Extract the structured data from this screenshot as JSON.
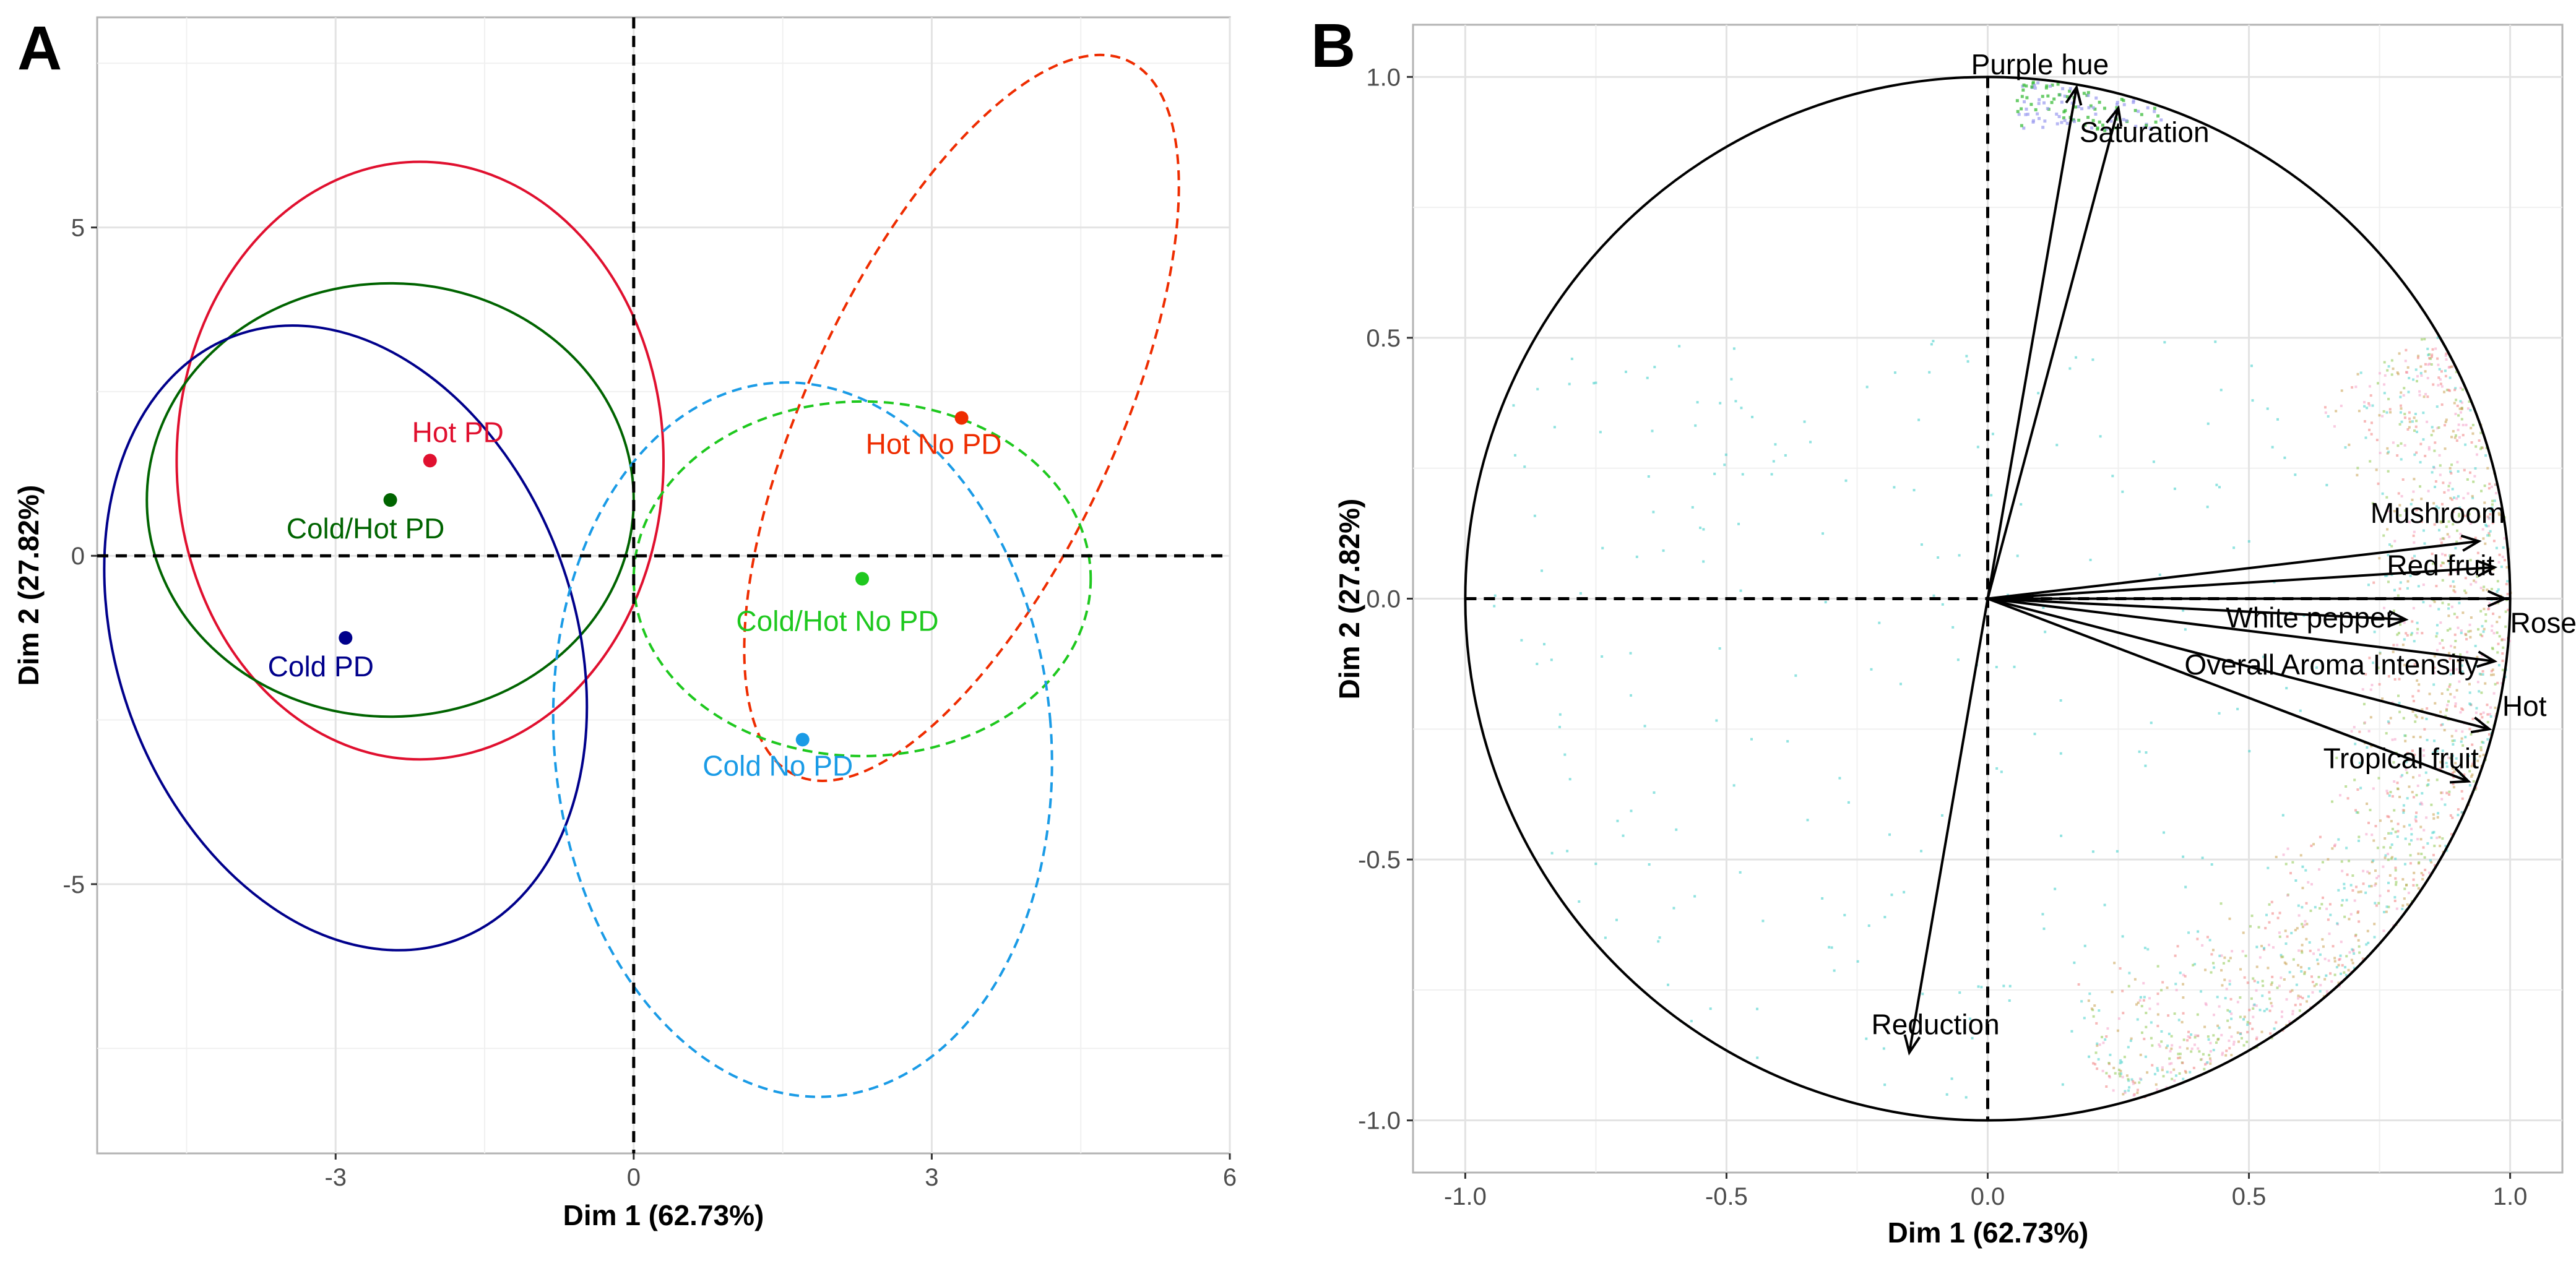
{
  "figure": {
    "panels": [
      "A",
      "B"
    ]
  },
  "chart_data": [
    {
      "panel": "A",
      "type": "scatter",
      "xlabel": "Dim 1 (62.73%)",
      "ylabel": "Dim 2 (27.82%)",
      "xlim": [
        -5.4,
        6.0
      ],
      "ylim": [
        -9.1,
        8.2
      ],
      "xticks": [
        "-3",
        "0",
        "3",
        "6"
      ],
      "yticks": [
        "-5",
        "0",
        "5"
      ],
      "grid": true,
      "ref_lines": [
        "x=0",
        "y=0"
      ],
      "series": [
        {
          "name": "Hot PD",
          "x": -2.05,
          "y": 1.45,
          "color": "#e0102f",
          "line": "solid",
          "ellipse": {
            "cx": -2.15,
            "cy": 1.45,
            "rx": 2.45,
            "ry": 4.55,
            "angle": 0
          }
        },
        {
          "name": "Cold/Hot PD",
          "x": -2.45,
          "y": 0.85,
          "color": "#006400",
          "line": "solid",
          "ellipse": {
            "cx": -2.45,
            "cy": 0.85,
            "rx": 2.45,
            "ry": 3.3,
            "angle": 0
          }
        },
        {
          "name": "Cold PD",
          "x": -2.9,
          "y": -1.25,
          "color": "#00008b",
          "line": "solid",
          "ellipse": {
            "cx": -2.9,
            "cy": -1.25,
            "rx": 2.3,
            "ry": 4.9,
            "angle": -20
          }
        },
        {
          "name": "Hot No PD",
          "x": 3.3,
          "y": 2.1,
          "color": "#ee2c00",
          "line": "dashed",
          "ellipse": {
            "cx": 3.3,
            "cy": 2.1,
            "rx": 1.55,
            "ry": 6.0,
            "angle": 25
          }
        },
        {
          "name": "Cold/Hot No PD",
          "x": 2.3,
          "y": -0.35,
          "color": "#1ec81e",
          "line": "dashed",
          "ellipse": {
            "cx": 2.3,
            "cy": -0.35,
            "rx": 2.3,
            "ry": 2.7,
            "angle": 0
          }
        },
        {
          "name": "Cold No PD",
          "x": 1.7,
          "y": -2.8,
          "color": "#1a9be6",
          "line": "dashed",
          "ellipse": {
            "cx": 1.7,
            "cy": -2.8,
            "rx": 2.5,
            "ry": 5.45,
            "angle": -5
          }
        }
      ]
    },
    {
      "panel": "B",
      "type": "scatter",
      "xlabel": "Dim 1 (62.73%)",
      "ylabel": "Dim 2 (27.82%)",
      "xlim": [
        -1.1,
        1.1
      ],
      "ylim": [
        -1.1,
        1.1
      ],
      "xticks": [
        "-1.0",
        "-0.5",
        "0.0",
        "0.5",
        "1.0"
      ],
      "yticks": [
        "-1.0",
        "-0.5",
        "0.0",
        "0.5",
        "1.0"
      ],
      "grid": true,
      "correlation_circle": true,
      "ref_lines": [
        "x=0",
        "y=0"
      ],
      "vectors": [
        {
          "name": "Purple hue",
          "x": 0.17,
          "y": 0.98
        },
        {
          "name": "Saturation",
          "x": 0.25,
          "y": 0.94
        },
        {
          "name": "Mushroom",
          "x": 0.94,
          "y": 0.11
        },
        {
          "name": "Red fruit",
          "x": 0.97,
          "y": 0.06
        },
        {
          "name": "Rose",
          "x": 0.99,
          "y": 0.0
        },
        {
          "name": "White pepper",
          "x": 0.8,
          "y": -0.04
        },
        {
          "name": "Overall Aroma Intensity",
          "x": 0.97,
          "y": -0.12
        },
        {
          "name": "Hot",
          "x": 0.96,
          "y": -0.25
        },
        {
          "name": "Tropical fruit",
          "x": 0.92,
          "y": -0.35
        },
        {
          "name": "Reduction",
          "x": -0.15,
          "y": -0.87
        }
      ],
      "scatter_colors": [
        "#f08080",
        "#48d1cc",
        "#c8a050",
        "#f4a0c8",
        "#8ec850"
      ]
    }
  ]
}
